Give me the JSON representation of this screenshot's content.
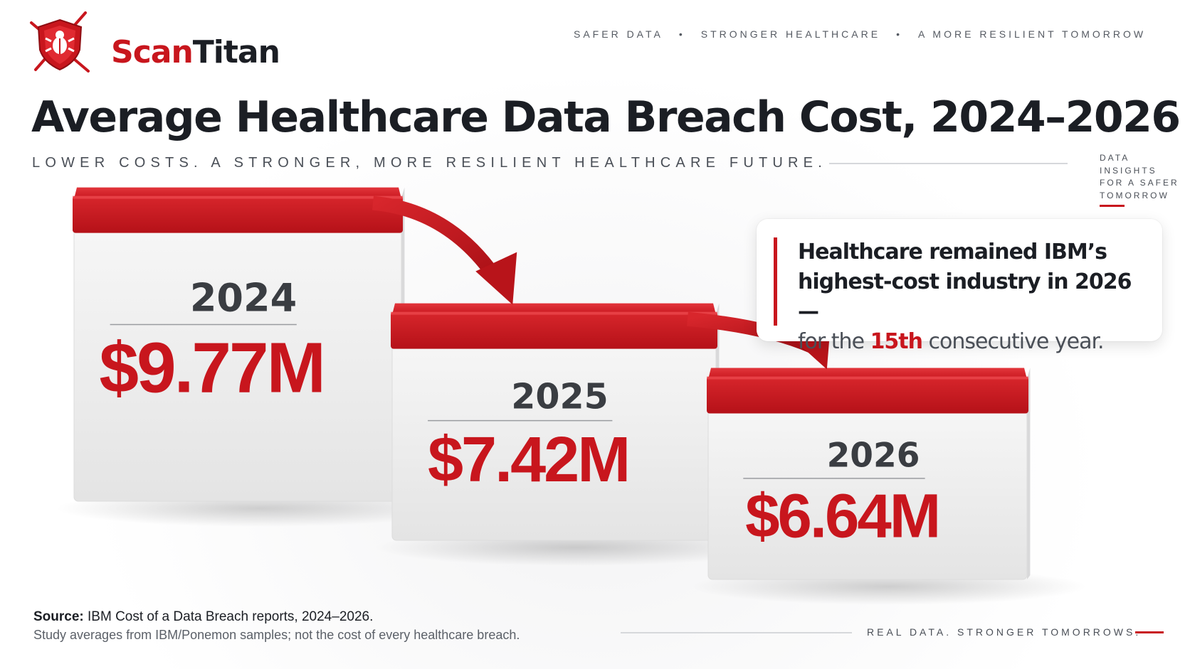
{
  "brand": {
    "name_part1": "Scan",
    "name_part2": "Titan",
    "logo_icon": "shield-bug-icon",
    "accent": "#c8161d"
  },
  "header": {
    "tagline": [
      "SAFER DATA",
      "STRONGER HEALTHCARE",
      "A MORE RESILIENT TOMORROW"
    ],
    "tagline_separator": "•"
  },
  "side_note": {
    "lines": [
      "DATA",
      "INSIGHTS",
      "FOR A SAFER",
      "TOMORROW"
    ]
  },
  "callout": {
    "line_strong_1": "Healthcare remained IBM’s",
    "line_strong_2": "highest-cost industry in 2026 —",
    "rest_before": "for the ",
    "highlight": "15th",
    "rest_after": " consecutive year."
  },
  "chart_data": {
    "type": "bar",
    "title": "Average Healthcare Data Breach Cost, 2024–2026",
    "subtitle": "LOWER COSTS. A STRONGER, MORE RESILIENT HEALTHCARE FUTURE.",
    "categories": [
      "2024",
      "2025",
      "2026"
    ],
    "values": [
      9.77,
      7.42,
      6.64
    ],
    "value_labels": [
      "$9.77M",
      "$7.42M",
      "$6.64M"
    ],
    "unit": "$M",
    "colors": {
      "top": "#c8161d",
      "body": "#efefef",
      "value": "#c8161d",
      "year": "#3a3d42"
    },
    "grid": false,
    "legend": "none"
  },
  "footer": {
    "source_label": "Source:",
    "source_text": " IBM Cost of a Data Breach reports, 2024–2026.",
    "note": "Study averages from IBM/Ponemon samples; not the cost of every healthcare breach.",
    "tag": "REAL DATA. STRONGER TOMORROWS."
  }
}
